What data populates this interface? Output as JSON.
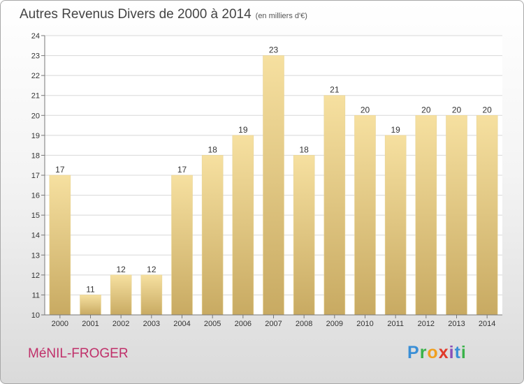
{
  "title": "Autres Revenus Divers de 2000 à 2014",
  "subtitle": "(en milliers d'€)",
  "town": "MéNIL-FROGER",
  "logo": {
    "text": "Proxiti",
    "letters": [
      {
        "ch": "P",
        "color": "#3a8fd6"
      },
      {
        "ch": "r",
        "color": "#3ab24a"
      },
      {
        "ch": "o",
        "color": "#f0a020"
      },
      {
        "ch": "x",
        "color": "#e03a2a"
      },
      {
        "ch": "i",
        "color": "#8a4fb8"
      },
      {
        "ch": "t",
        "color": "#3a8fd6"
      },
      {
        "ch": "i",
        "color": "#3ab24a"
      }
    ]
  },
  "colors": {
    "bar_top": "#f6e0a0",
    "bar_bottom": "#c8aa62",
    "axis": "#777777",
    "grid": "#d8d8d8",
    "plot_bg": "#ffffff",
    "text": "#333333",
    "town": "#c0306a"
  },
  "chart_data": {
    "type": "bar",
    "categories": [
      "2000",
      "2001",
      "2002",
      "2003",
      "2004",
      "2005",
      "2006",
      "2007",
      "2008",
      "2009",
      "2010",
      "2011",
      "2012",
      "2013",
      "2014"
    ],
    "values": [
      17,
      11,
      12,
      12,
      17,
      18,
      19,
      23,
      18,
      21,
      20,
      19,
      20,
      20,
      20
    ],
    "title": "Autres Revenus Divers de 2000 à 2014",
    "subtitle": "(en milliers d'€)",
    "xlabel": "",
    "ylabel": "",
    "ylim": [
      10,
      24
    ],
    "yticks": [
      10,
      11,
      12,
      13,
      14,
      15,
      16,
      17,
      18,
      19,
      20,
      21,
      22,
      23,
      24
    ],
    "grid": true,
    "data_labels": true
  }
}
